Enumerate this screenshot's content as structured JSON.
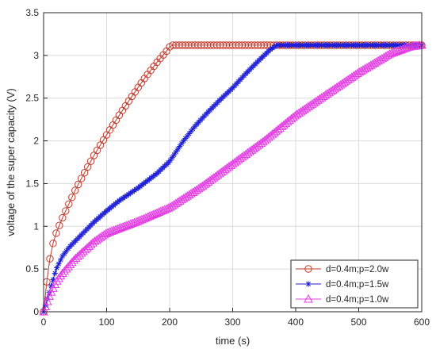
{
  "chart_data": {
    "type": "line",
    "title": "",
    "xlabel": "time (s)",
    "ylabel": "voltage of the super capacity (V)",
    "xlim": [
      0,
      600
    ],
    "ylim": [
      0,
      3.5
    ],
    "xticks": [
      0,
      100,
      200,
      300,
      400,
      500,
      600
    ],
    "yticks": [
      0,
      0.5,
      1,
      1.5,
      2,
      2.5,
      3,
      3.5
    ],
    "grid": true,
    "legend_position": "bottom-right",
    "series": [
      {
        "name": "d=0.4m;p=2.0w",
        "color": "#c0392b",
        "marker": "circle",
        "x": [
          0,
          5,
          10,
          15,
          20,
          30,
          40,
          50,
          60,
          80,
          100,
          120,
          140,
          160,
          180,
          195,
          200,
          205,
          250,
          300,
          350,
          400,
          450,
          500,
          550,
          600
        ],
        "y": [
          0,
          0.35,
          0.62,
          0.8,
          0.92,
          1.1,
          1.26,
          1.42,
          1.56,
          1.83,
          2.07,
          2.3,
          2.52,
          2.73,
          2.92,
          3.05,
          3.1,
          3.12,
          3.12,
          3.12,
          3.12,
          3.12,
          3.12,
          3.12,
          3.12,
          3.12
        ]
      },
      {
        "name": "d=0.4m;p=1.5w",
        "color": "#1f1fd6",
        "marker": "asterisk",
        "x": [
          0,
          10,
          20,
          30,
          40,
          60,
          80,
          100,
          120,
          150,
          180,
          200,
          220,
          240,
          260,
          280,
          300,
          320,
          340,
          360,
          370,
          400,
          450,
          500,
          550,
          600
        ],
        "y": [
          0,
          0.25,
          0.5,
          0.65,
          0.75,
          0.9,
          1.05,
          1.18,
          1.3,
          1.45,
          1.62,
          1.76,
          1.98,
          2.17,
          2.33,
          2.48,
          2.62,
          2.78,
          2.93,
          3.07,
          3.12,
          3.12,
          3.12,
          3.12,
          3.12,
          3.12
        ]
      },
      {
        "name": "d=0.4m;p=1.0w",
        "color": "#e23de2",
        "marker": "triangle",
        "x": [
          0,
          10,
          20,
          30,
          50,
          80,
          100,
          150,
          200,
          250,
          300,
          350,
          400,
          450,
          500,
          550,
          580,
          600
        ],
        "y": [
          0,
          0.2,
          0.35,
          0.45,
          0.62,
          0.82,
          0.92,
          1.06,
          1.22,
          1.46,
          1.73,
          2.0,
          2.3,
          2.55,
          2.8,
          3.02,
          3.1,
          3.12
        ]
      }
    ]
  }
}
